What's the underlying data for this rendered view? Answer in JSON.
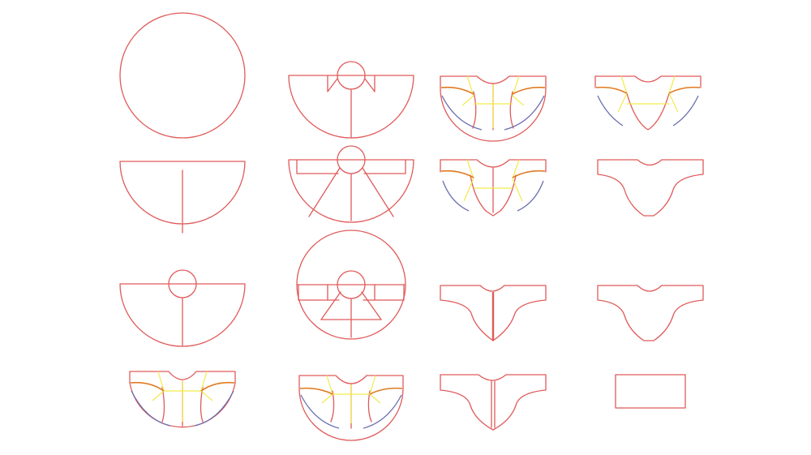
{
  "colors": {
    "background": "#ffffff",
    "pattern_line": "#e05a5a",
    "construction_line": "#f2ea4a",
    "seam_curve": "#e07a20",
    "hem_curve": "#6b6fb0"
  },
  "diagram": {
    "description_items": [
      "circle",
      "half-circle",
      "half-circle-neck",
      "cape-base",
      "cape-shoulder-darts",
      "cape-wedge-darts",
      "full-circle-darts",
      "cape-guides",
      "cape-guides",
      "cape-guides",
      "bodice-cut",
      "bodice-cut",
      "bodice-outline",
      "bodice-outline",
      "bodice-outline",
      "rectangle"
    ]
  }
}
